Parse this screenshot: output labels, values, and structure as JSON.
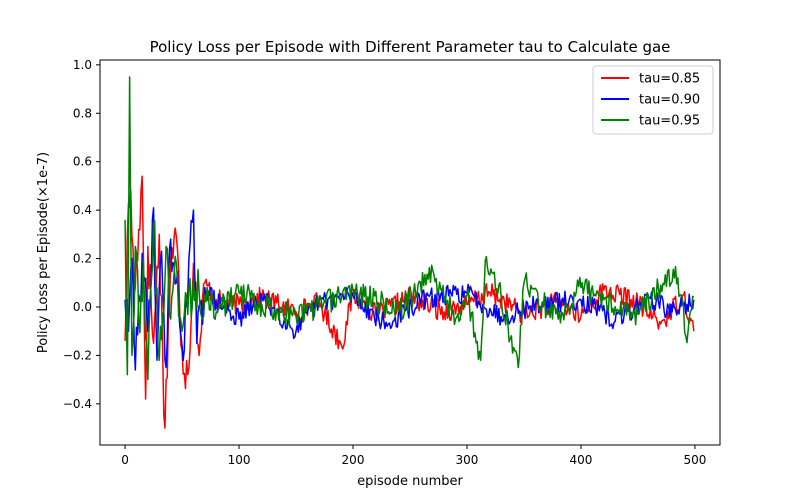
{
  "chart_data": {
    "type": "line",
    "title": "Policy Loss per Episode with Different Parameter tau to Calculate gae",
    "xlabel": "episode number",
    "ylabel": "Policy Loss per Episode(×1e-7)",
    "xlim": [
      -22,
      522
    ],
    "ylim": [
      -0.57,
      1.02
    ],
    "xticks": [
      0,
      100,
      200,
      300,
      400,
      500
    ],
    "xtick_labels": [
      "0",
      "100",
      "200",
      "300",
      "400",
      "500"
    ],
    "yticks": [
      -0.4,
      -0.2,
      0.0,
      0.2,
      0.4,
      0.6,
      0.8,
      1.0
    ],
    "ytick_labels": [
      "−0.4",
      "−0.2",
      "0.0",
      "0.2",
      "0.4",
      "0.6",
      "0.8",
      "1.0"
    ],
    "grid": false,
    "legend_position": "top-right",
    "series": [
      {
        "name": "tau=0.85",
        "color": "#ff0000",
        "seed": 17,
        "noise": 0.034,
        "x": [
          0,
          2,
          5,
          8,
          12,
          15,
          18,
          20,
          25,
          30,
          35,
          40,
          45,
          50,
          55,
          60,
          65,
          70,
          80,
          100,
          120,
          150,
          170,
          190,
          200,
          220,
          250,
          280,
          300,
          320,
          350,
          380,
          400,
          420,
          450,
          470,
          490,
          499
        ],
        "y": [
          -0.14,
          0.3,
          0.48,
          0.05,
          0.32,
          0.54,
          -0.38,
          0.25,
          -0.15,
          0.3,
          -0.5,
          0.2,
          0.29,
          -0.18,
          -0.28,
          0.18,
          -0.2,
          0.1,
          0.03,
          0.01,
          0.04,
          -0.02,
          0.02,
          -0.16,
          0.05,
          -0.03,
          0.04,
          -0.02,
          0.01,
          0.06,
          -0.03,
          0.02,
          -0.04,
          0.07,
          0.02,
          -0.07,
          0.05,
          -0.1
        ]
      },
      {
        "name": "tau=0.90",
        "color": "#0000ff",
        "seed": 29,
        "noise": 0.033,
        "x": [
          0,
          3,
          6,
          9,
          12,
          16,
          20,
          25,
          28,
          32,
          36,
          40,
          45,
          50,
          55,
          60,
          63,
          70,
          80,
          100,
          120,
          150,
          170,
          200,
          230,
          260,
          300,
          330,
          360,
          400,
          430,
          460,
          480,
          499
        ],
        "y": [
          0.03,
          -0.1,
          0.2,
          -0.26,
          0.05,
          0.15,
          -0.1,
          0.41,
          -0.22,
          0.23,
          -0.25,
          0.28,
          0.1,
          -0.16,
          0.05,
          0.4,
          -0.15,
          0.08,
          0.02,
          -0.05,
          0.04,
          -0.1,
          0.02,
          0.05,
          -0.08,
          0.03,
          0.06,
          -0.04,
          0.01,
          0.03,
          -0.06,
          0.04,
          -0.02,
          0.03
        ]
      },
      {
        "name": "tau=0.95",
        "color": "#008000",
        "seed": 43,
        "noise": 0.04,
        "x": [
          0,
          2,
          4,
          6,
          9,
          12,
          16,
          20,
          25,
          30,
          36,
          40,
          45,
          50,
          60,
          70,
          80,
          100,
          120,
          150,
          200,
          240,
          270,
          290,
          300,
          312,
          316,
          330,
          345,
          350,
          380,
          400,
          420,
          450,
          470,
          485,
          492,
          499
        ],
        "y": [
          0.36,
          -0.28,
          0.95,
          -0.2,
          0.25,
          -0.05,
          0.2,
          -0.3,
          0.35,
          -0.22,
          0.25,
          -0.05,
          0.18,
          -0.1,
          0.12,
          0.05,
          -0.02,
          0.06,
          0.01,
          -0.04,
          0.07,
          -0.02,
          0.15,
          -0.05,
          0.05,
          -0.22,
          0.19,
          0.04,
          -0.25,
          0.1,
          -0.05,
          0.08,
          0.03,
          -0.03,
          0.09,
          0.12,
          -0.12,
          0.04
        ]
      }
    ]
  }
}
